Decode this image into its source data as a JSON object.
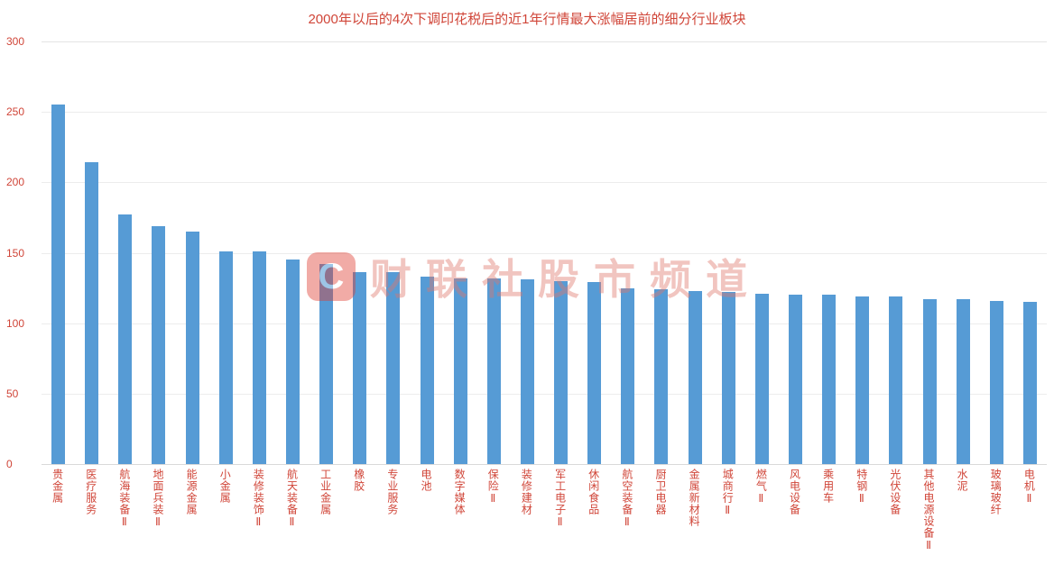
{
  "title": "2000年以后的4次下调印花税后的近1年行情最大涨幅居前的细分行业板块",
  "watermark": {
    "logo_letter": "C",
    "text": "财联社股市频道"
  },
  "colors": {
    "bar": "#569bd5",
    "text": "#d04538",
    "watermark_red": "#e03a2e"
  },
  "chart_data": {
    "type": "bar",
    "title": "2000年以后的4次下调印花税后的近1年行情最大涨幅居前的细分行业板块",
    "categories": [
      "贵金属",
      "医疗服务",
      "航海装备Ⅱ",
      "地面兵装Ⅱ",
      "能源金属",
      "小金属",
      "装修装饰Ⅱ",
      "航天装备Ⅱ",
      "工业金属",
      "橡胶",
      "专业服务",
      "电池",
      "数字媒体",
      "保险Ⅱ",
      "装修建材",
      "军工电子Ⅱ",
      "休闲食品",
      "航空装备Ⅱ",
      "厨卫电器",
      "金属新材料",
      "城商行Ⅱ",
      "燃气Ⅱ",
      "风电设备",
      "乘用车",
      "特钢Ⅱ",
      "光伏设备",
      "其他电源设备Ⅱ",
      "水泥",
      "玻璃玻纤",
      "电机Ⅱ"
    ],
    "values": [
      255,
      214,
      177,
      169,
      165,
      151,
      151,
      145,
      142,
      136,
      136,
      133,
      132,
      132,
      131,
      130,
      129,
      125,
      124,
      123,
      122,
      121,
      120,
      120,
      119,
      119,
      117,
      117,
      116,
      115
    ],
    "xlabel": "",
    "ylabel": "",
    "ylim": [
      0,
      300
    ],
    "yticks": [
      0,
      50,
      100,
      150,
      200,
      250,
      300
    ],
    "grid": true,
    "legend_position": "none"
  }
}
